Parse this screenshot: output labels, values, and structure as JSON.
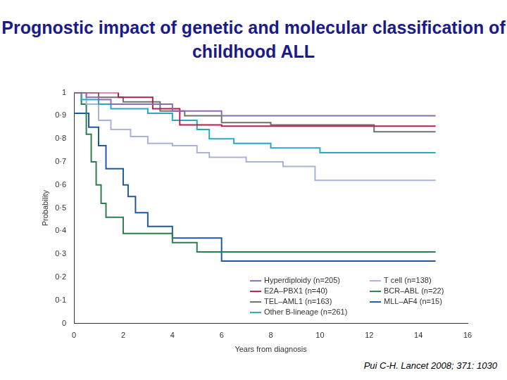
{
  "chart_data": {
    "type": "line",
    "title": "Prognostic impact of genetic and molecular classification of childhood ALL",
    "annotations": [
      "Pui C-H. Lancet 2008; 371: 1030"
    ],
    "x_label": "Years from diagnosis",
    "y_label": "Probability",
    "xlim": [
      0,
      16
    ],
    "xticks": [
      0,
      2,
      4,
      6,
      8,
      10,
      12,
      14,
      16
    ],
    "ylim": [
      0,
      1
    ],
    "yticks": [
      0,
      {
        "value": 0.1,
        "label": "0·1"
      },
      {
        "value": 0.2,
        "label": "0·2"
      },
      {
        "value": 0.3,
        "label": "0·3"
      },
      {
        "value": 0.4,
        "label": "0·4"
      },
      {
        "value": 0.5,
        "label": "0·5"
      },
      {
        "value": 0.6,
        "label": "0·6"
      },
      {
        "value": 0.7,
        "label": "0·7"
      },
      {
        "value": 0.8,
        "label": "0·8"
      },
      {
        "value": 0.9,
        "label": "0·9"
      },
      1
    ],
    "grid": false,
    "legend": "lower right",
    "line_style": "step",
    "series": [
      {
        "name": "Hyperdiploidy (n=205)",
        "color": "#8e6bb5",
        "x": [
          0,
          0.5,
          1.0,
          1.5,
          4.0,
          6.0,
          14.7
        ],
        "values": [
          1,
          0.98,
          0.97,
          0.95,
          0.92,
          0.9,
          0.9
        ]
      },
      {
        "name": "E2A–PBX1 (n=40)",
        "color": "#b3204d",
        "x": [
          0,
          1.8,
          3.2,
          4.3,
          6.0,
          14.7
        ],
        "values": [
          1,
          0.98,
          0.93,
          0.86,
          0.855,
          0.855
        ]
      },
      {
        "name": "TEL–AML1 (n=163)",
        "color": "#707070",
        "x": [
          0,
          1.0,
          2.0,
          3.5,
          4.5,
          6.0,
          8.0,
          12.2,
          14.7
        ],
        "values": [
          1,
          0.98,
          0.96,
          0.92,
          0.9,
          0.87,
          0.86,
          0.83,
          0.83
        ]
      },
      {
        "name": "Other B-lineage (n=261)",
        "color": "#2aa8c0",
        "x": [
          0,
          0.3,
          1.0,
          1.5,
          3.0,
          4.0,
          5.0,
          5.5,
          6.5,
          8.0,
          10.0,
          14.7
        ],
        "values": [
          1,
          0.97,
          0.95,
          0.93,
          0.91,
          0.88,
          0.84,
          0.8,
          0.78,
          0.76,
          0.74,
          0.74
        ]
      },
      {
        "name": "T cell (n=138)",
        "color": "#a9b3da",
        "x": [
          0,
          0.5,
          1.0,
          1.5,
          2.3,
          3.0,
          4.0,
          5.0,
          5.5,
          7.0,
          8.5,
          9.8,
          14.7
        ],
        "values": [
          1,
          0.95,
          0.88,
          0.84,
          0.81,
          0.78,
          0.77,
          0.74,
          0.72,
          0.7,
          0.68,
          0.62,
          0.62
        ]
      },
      {
        "name": "BCR–ABL (n=22)",
        "color": "#2e7d50",
        "x": [
          0,
          0.3,
          0.5,
          0.7,
          0.9,
          1.1,
          1.3,
          2.0,
          4.0,
          5.0,
          14.7
        ],
        "values": [
          1,
          0.95,
          0.82,
          0.7,
          0.6,
          0.52,
          0.46,
          0.39,
          0.35,
          0.31,
          0.31
        ]
      },
      {
        "name": "MLL–AF4 (n=15)",
        "color": "#1f5aa0",
        "x": [
          0,
          0.6,
          1.0,
          1.3,
          2.0,
          2.2,
          2.5,
          3.0,
          4.0,
          6.0,
          14.7
        ],
        "values": [
          0.91,
          0.85,
          0.77,
          0.67,
          0.6,
          0.55,
          0.48,
          0.42,
          0.37,
          0.27,
          0.27
        ]
      }
    ]
  }
}
